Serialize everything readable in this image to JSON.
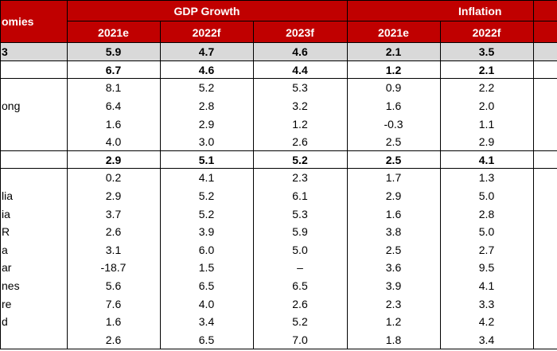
{
  "table": {
    "header": {
      "label": "omies",
      "groups": [
        "GDP Growth",
        "Inflation"
      ],
      "columns": [
        "2021e",
        "2022f",
        "2023f",
        "2021e",
        "2022f"
      ]
    },
    "rows": [
      {
        "label": "3",
        "values": [
          "5.9",
          "4.7",
          "4.6",
          "2.1",
          "3.5"
        ]
      },
      {
        "label": null,
        "values": [
          "6.7",
          "4.6",
          "4.4",
          "1.2",
          "2.1"
        ]
      },
      {
        "label": null,
        "values": [
          "8.1",
          "5.2",
          "5.3",
          "0.9",
          "2.2"
        ]
      },
      {
        "label": "ong",
        "values": [
          "6.4",
          "2.8",
          "3.2",
          "1.6",
          "2.0"
        ]
      },
      {
        "label": null,
        "values": [
          "1.6",
          "2.9",
          "1.2",
          "-0.3",
          "1.1"
        ]
      },
      {
        "label": null,
        "values": [
          "4.0",
          "3.0",
          "2.6",
          "2.5",
          "2.9"
        ]
      },
      {
        "label": null,
        "values": [
          "2.9",
          "5.1",
          "5.2",
          "2.5",
          "4.1"
        ]
      },
      {
        "label": null,
        "values": [
          "0.2",
          "4.1",
          "2.3",
          "1.7",
          "1.3"
        ]
      },
      {
        "label": "lia",
        "values": [
          "2.9",
          "5.2",
          "6.1",
          "2.9",
          "5.0"
        ]
      },
      {
        "label": "ia",
        "values": [
          "3.7",
          "5.2",
          "5.3",
          "1.6",
          "2.8"
        ]
      },
      {
        "label": "R",
        "values": [
          "2.6",
          "3.9",
          "5.9",
          "3.8",
          "5.0"
        ]
      },
      {
        "label": "a",
        "values": [
          "3.1",
          "6.0",
          "5.0",
          "2.5",
          "2.7"
        ]
      },
      {
        "label": "ar",
        "values": [
          "-18.7",
          "1.5",
          "–",
          "3.6",
          "9.5"
        ]
      },
      {
        "label": "nes",
        "values": [
          "5.6",
          "6.5",
          "6.5",
          "3.9",
          "4.1"
        ]
      },
      {
        "label": "re",
        "values": [
          "7.6",
          "4.0",
          "2.6",
          "2.3",
          "3.3"
        ]
      },
      {
        "label": "d",
        "values": [
          "1.6",
          "3.4",
          "5.2",
          "1.2",
          "4.2"
        ]
      },
      {
        "label": null,
        "values": [
          "2.6",
          "6.5",
          "7.0",
          "1.8",
          "3.4"
        ]
      }
    ]
  }
}
